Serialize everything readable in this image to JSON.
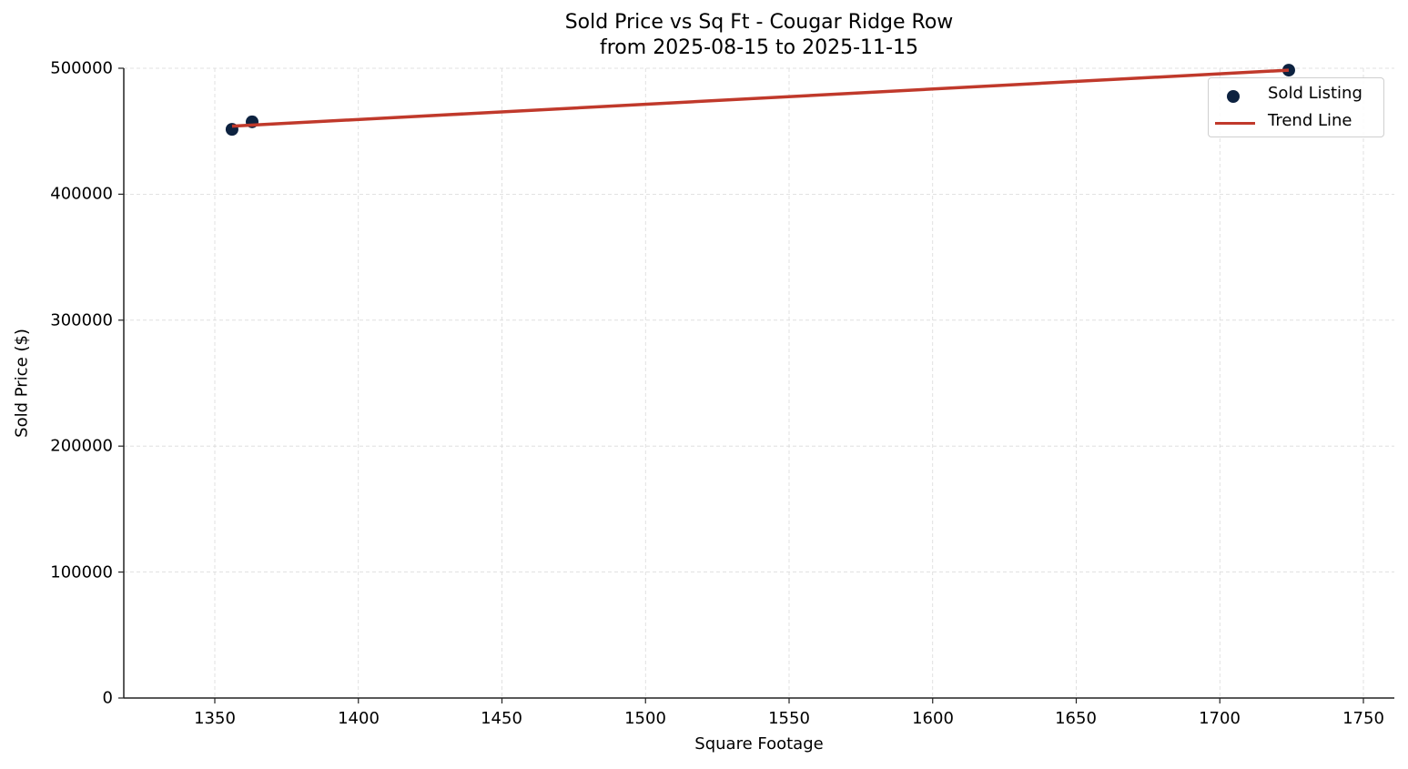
{
  "chart": {
    "title_line1": "Sold Price vs Sq Ft - Cougar Ridge Row",
    "title_line2": "from 2025-08-15 to 2025-11-15",
    "xlabel": "Square Footage",
    "ylabel": "Sold Price ($)",
    "xticks": [
      "1350",
      "1400",
      "1450",
      "1500",
      "1550",
      "1600",
      "1650",
      "1700",
      "1750"
    ],
    "yticks": [
      "0",
      "100000",
      "200000",
      "300000",
      "400000",
      "500000"
    ],
    "legend": {
      "sold_listing": "Sold Listing",
      "trend_line": "Trend Line"
    },
    "colors": {
      "points": "#0d2240",
      "trend": "#c0392b",
      "grid": "#d9d9d9",
      "axis": "#222222"
    }
  },
  "chart_data": {
    "type": "scatter",
    "title": "Sold Price vs Sq Ft - Cougar Ridge Row\nfrom 2025-08-15 to 2025-11-15",
    "xlabel": "Square Footage",
    "ylabel": "Sold Price ($)",
    "xlim": [
      1320,
      1760
    ],
    "ylim": [
      0,
      500000
    ],
    "grid": true,
    "legend_position": "upper right",
    "series": [
      {
        "name": "Sold Listing",
        "type": "scatter",
        "color": "#0d2240",
        "points": [
          {
            "x": 1356,
            "y": 451500
          },
          {
            "x": 1363,
            "y": 457500
          },
          {
            "x": 1724,
            "y": 498500
          }
        ]
      },
      {
        "name": "Trend Line",
        "type": "line",
        "color": "#c0392b",
        "points": [
          {
            "x": 1356,
            "y": 454000
          },
          {
            "x": 1724,
            "y": 498500
          }
        ]
      }
    ]
  }
}
